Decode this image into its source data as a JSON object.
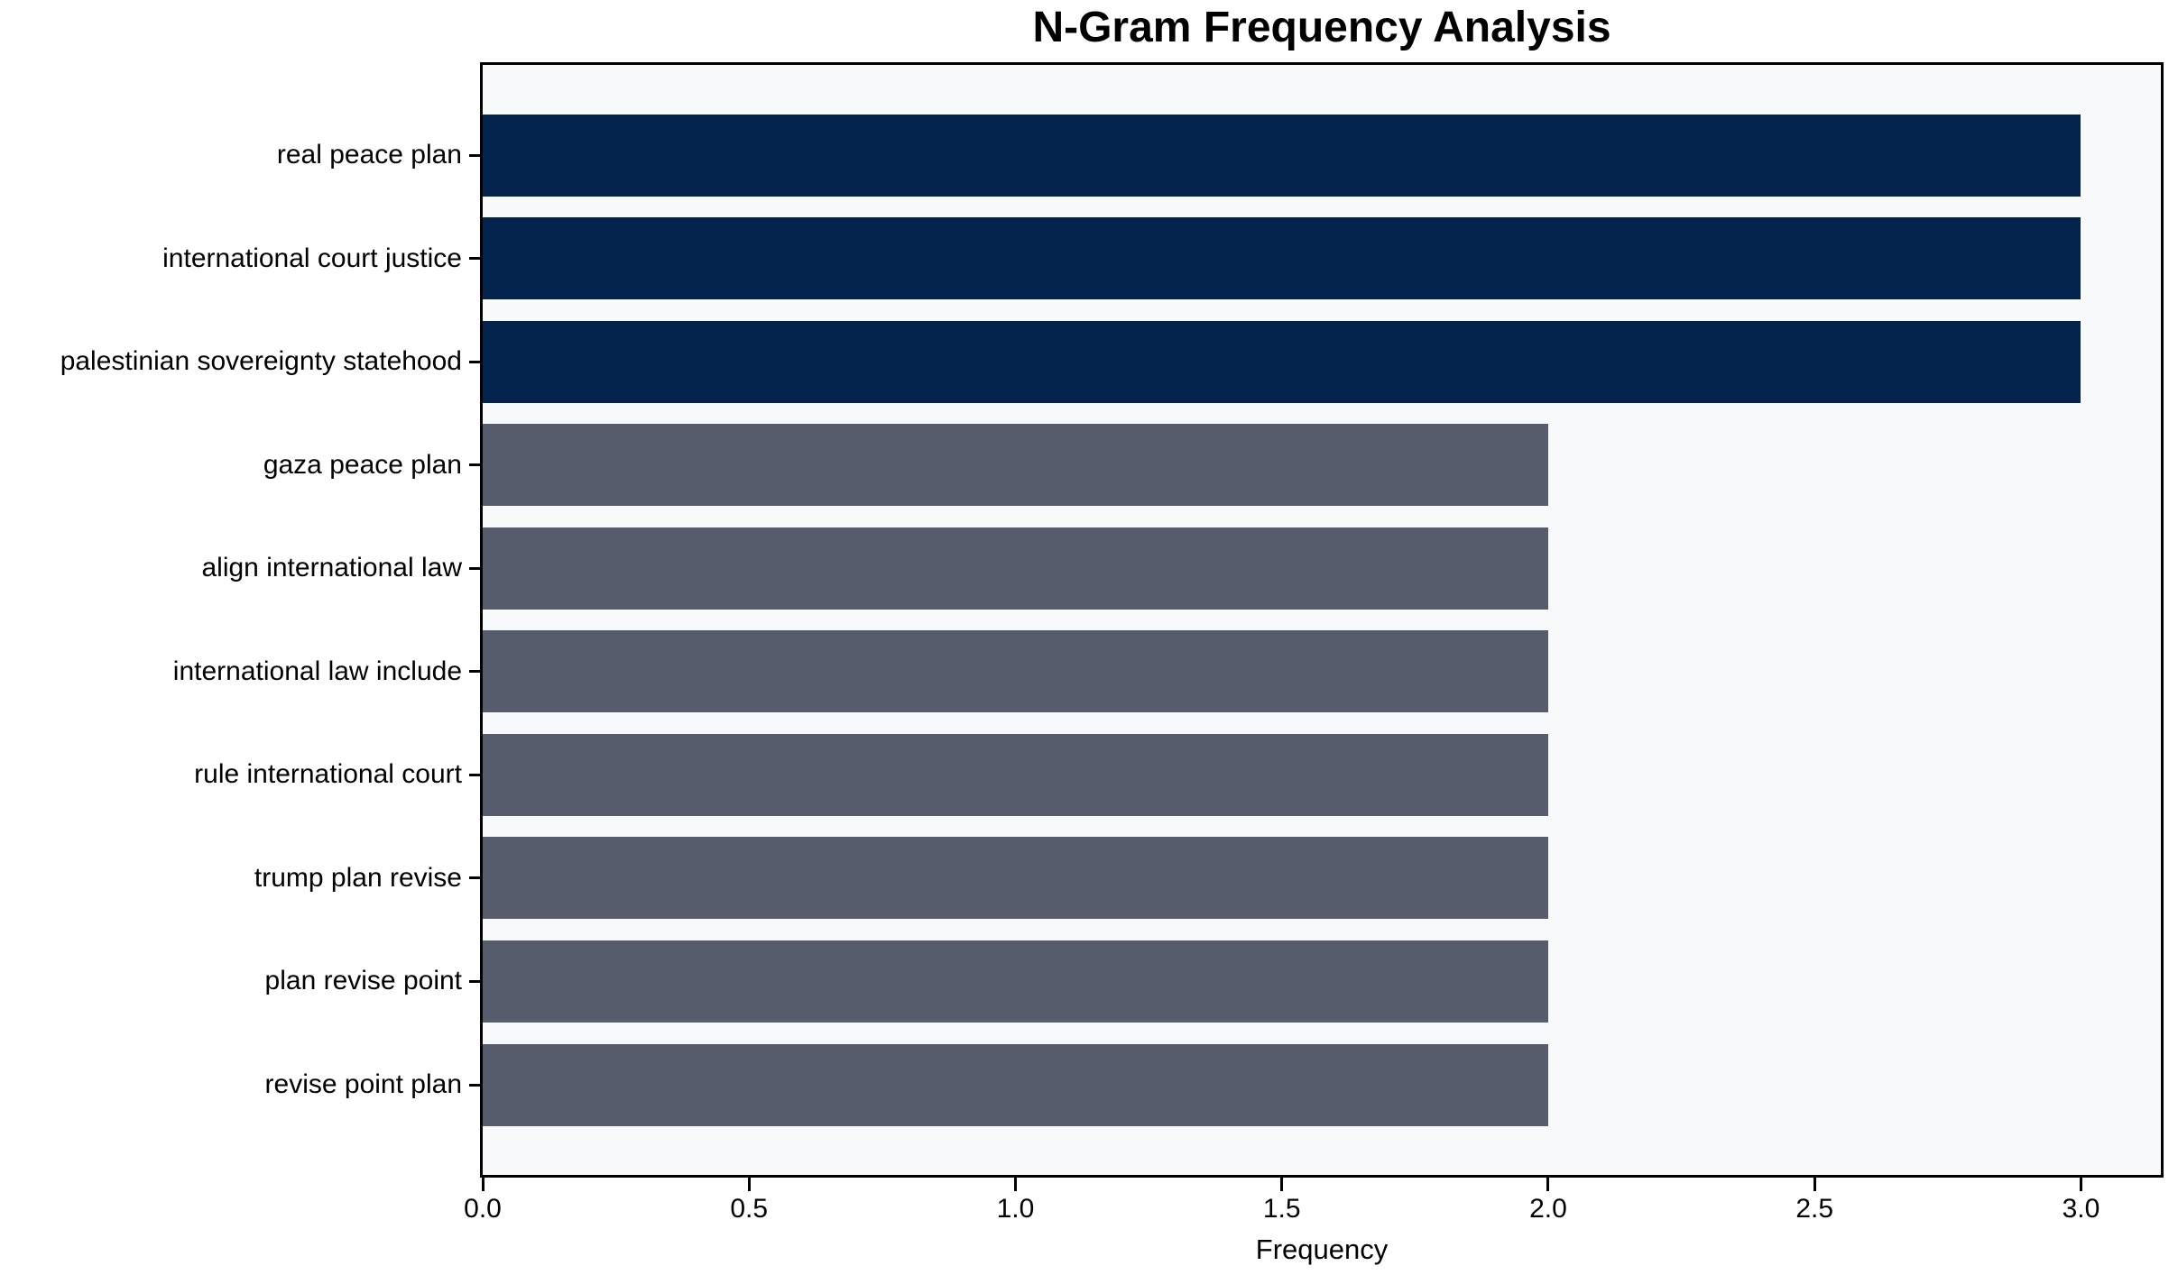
{
  "chart_data": {
    "type": "bar",
    "orientation": "horizontal",
    "title": "N-Gram Frequency Analysis",
    "xlabel": "Frequency",
    "ylabel": "",
    "categories": [
      "real peace plan",
      "international court justice",
      "palestinian sovereignty statehood",
      "gaza peace plan",
      "align international law",
      "international law include",
      "rule international court",
      "trump plan revise",
      "plan revise point",
      "revise point plan"
    ],
    "values": [
      3,
      3,
      3,
      2,
      2,
      2,
      2,
      2,
      2,
      2
    ],
    "bar_colors": [
      "#04234d",
      "#04234d",
      "#04234d",
      "#565c6c",
      "#565c6c",
      "#565c6c",
      "#565c6c",
      "#565c6c",
      "#565c6c",
      "#565c6c"
    ],
    "xlim": [
      0,
      3.15
    ],
    "xticks": [
      "0.0",
      "0.5",
      "1.0",
      "1.5",
      "2.0",
      "2.5",
      "3.0"
    ],
    "xtick_values": [
      0,
      0.5,
      1,
      1.5,
      2,
      2.5,
      3
    ],
    "grid": false,
    "legend": null,
    "colors": {
      "highlight": "#04234d",
      "base": "#565c6c",
      "plot_background": "#f8f9fa",
      "figure_background": "#ffffff",
      "spine": "#000000",
      "text": "#000000"
    }
  }
}
